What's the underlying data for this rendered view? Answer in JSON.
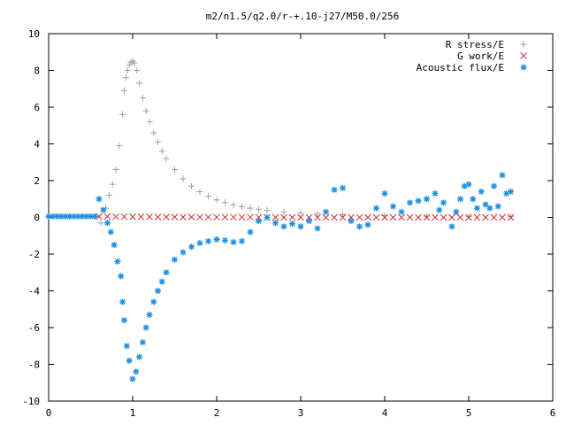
{
  "chart_data": {
    "type": "scatter",
    "title": "m2/n1.5/q2.0/r-+.10-j27/M50.0/256",
    "xlabel": "",
    "ylabel": "",
    "xlim": [
      0,
      6
    ],
    "ylim": [
      -10,
      10
    ],
    "x_ticks": [
      "0",
      "1",
      "2",
      "3",
      "4",
      "5",
      "6"
    ],
    "y_ticks": [
      "-10",
      "-8",
      "-6",
      "-4",
      "-2",
      "0",
      "2",
      "4",
      "6",
      "8",
      "10"
    ],
    "grid": false,
    "legend_position": "top-right",
    "series": [
      {
        "name": "R stress/E",
        "marker": "plus",
        "color": "#a0a0a0",
        "x": [
          0.62,
          0.68,
          0.72,
          0.76,
          0.8,
          0.84,
          0.88,
          0.9,
          0.92,
          0.94,
          0.96,
          0.98,
          1.0,
          1.02,
          1.05,
          1.08,
          1.12,
          1.16,
          1.2,
          1.25,
          1.3,
          1.35,
          1.4,
          1.5,
          1.6,
          1.7,
          1.8,
          1.9,
          2.0,
          2.1,
          2.2,
          2.3,
          2.4,
          2.5,
          2.6,
          2.8,
          3.0,
          3.2,
          3.5,
          4.0,
          4.5,
          5.0,
          5.5
        ],
        "y": [
          -0.3,
          0.5,
          1.2,
          1.8,
          2.6,
          3.9,
          5.6,
          6.9,
          7.6,
          8.0,
          8.3,
          8.45,
          8.5,
          8.4,
          8.0,
          7.3,
          6.5,
          5.8,
          5.2,
          4.6,
          4.1,
          3.6,
          3.2,
          2.6,
          2.1,
          1.7,
          1.4,
          1.15,
          0.95,
          0.8,
          0.68,
          0.58,
          0.5,
          0.44,
          0.38,
          0.3,
          0.24,
          0.2,
          0.15,
          0.1,
          0.07,
          0.05,
          0.04
        ]
      },
      {
        "name": "G work/E",
        "marker": "cross",
        "color": "#d03030",
        "x": [
          0.6,
          0.7,
          0.8,
          0.9,
          1.0,
          1.1,
          1.2,
          1.3,
          1.4,
          1.5,
          1.6,
          1.7,
          1.8,
          1.9,
          2.0,
          2.1,
          2.2,
          2.3,
          2.4,
          2.5,
          2.6,
          2.7,
          2.8,
          2.9,
          3.0,
          3.1,
          3.2,
          3.3,
          3.4,
          3.5,
          3.6,
          3.7,
          3.8,
          3.9,
          4.0,
          4.1,
          4.2,
          4.3,
          4.4,
          4.5,
          4.6,
          4.7,
          4.8,
          4.9,
          5.0,
          5.1,
          5.2,
          5.3,
          5.4,
          5.5
        ],
        "y": [
          0.05,
          0.05,
          0.04,
          0.04,
          0.03,
          0.03,
          0.03,
          0.02,
          0.02,
          0.02,
          0.02,
          0.02,
          0.01,
          0.01,
          0.01,
          0.01,
          0.01,
          0.01,
          0.01,
          0.01,
          0.0,
          0.0,
          0.0,
          0.0,
          0.0,
          0.0,
          0.0,
          0.0,
          0.0,
          0.0,
          0.0,
          0.0,
          0.0,
          0.0,
          0.0,
          0.0,
          0.0,
          0.0,
          0.0,
          0.0,
          0.0,
          0.0,
          0.0,
          0.0,
          0.0,
          0.0,
          0.0,
          0.0,
          0.0,
          0.0
        ]
      },
      {
        "name": "Acoustic flux/E",
        "marker": "star",
        "color": "#1a8fe0",
        "x": [
          0.0,
          0.05,
          0.1,
          0.15,
          0.2,
          0.25,
          0.3,
          0.35,
          0.4,
          0.45,
          0.5,
          0.55,
          0.6,
          0.65,
          0.7,
          0.74,
          0.78,
          0.82,
          0.86,
          0.88,
          0.9,
          0.93,
          0.96,
          1.0,
          1.04,
          1.08,
          1.12,
          1.16,
          1.2,
          1.25,
          1.3,
          1.35,
          1.4,
          1.5,
          1.6,
          1.7,
          1.8,
          1.9,
          2.0,
          2.1,
          2.2,
          2.3,
          2.4,
          2.5,
          2.6,
          2.7,
          2.8,
          2.9,
          3.0,
          3.1,
          3.2,
          3.3,
          3.4,
          3.5,
          3.6,
          3.7,
          3.8,
          3.9,
          4.0,
          4.1,
          4.2,
          4.3,
          4.4,
          4.5,
          4.6,
          4.65,
          4.7,
          4.8,
          4.85,
          4.9,
          4.95,
          5.0,
          5.05,
          5.1,
          5.15,
          5.2,
          5.25,
          5.3,
          5.35,
          5.4,
          5.45,
          5.5
        ],
        "y": [
          0.05,
          0.05,
          0.05,
          0.05,
          0.05,
          0.05,
          0.05,
          0.05,
          0.05,
          0.05,
          0.05,
          0.05,
          1.0,
          0.4,
          -0.3,
          -0.8,
          -1.5,
          -2.4,
          -3.2,
          -4.6,
          -5.6,
          -7.0,
          -7.8,
          -8.8,
          -8.4,
          -7.6,
          -6.8,
          -6.0,
          -5.3,
          -4.6,
          -4.0,
          -3.5,
          -3.0,
          -2.3,
          -1.9,
          -1.6,
          -1.4,
          -1.3,
          -1.2,
          -1.25,
          -1.35,
          -1.3,
          -0.8,
          -0.2,
          0.0,
          -0.3,
          -0.5,
          -0.35,
          -0.5,
          -0.2,
          -0.6,
          0.3,
          1.5,
          1.6,
          -0.2,
          -0.5,
          -0.4,
          0.5,
          1.3,
          0.6,
          0.3,
          0.8,
          0.9,
          1.0,
          1.3,
          0.4,
          0.8,
          -0.5,
          0.3,
          1.0,
          1.7,
          1.8,
          1.0,
          0.5,
          1.4,
          0.7,
          0.5,
          1.7,
          0.6,
          2.3,
          1.3,
          1.4
        ]
      }
    ]
  }
}
